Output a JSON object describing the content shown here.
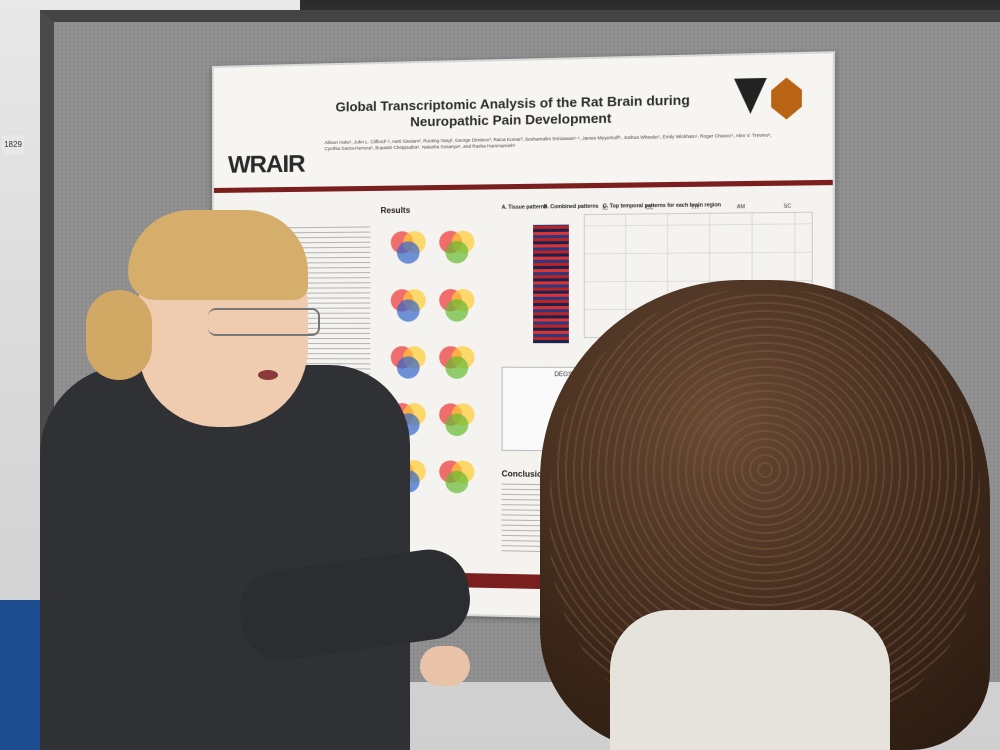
{
  "scene": {
    "booth_number": "1829"
  },
  "poster": {
    "logo": "WRAIR",
    "title": "Global Transcriptomic Analysis of the Rat Brain during Neuropathic Pain Development",
    "authors": "Allison Hoke¹, John L. Clifford¹·², Aarti Gautam², Ruoting Yang², George Dimitrov³, Raina Kumar³, Seshamalini Srinivasan¹·⁴, James Meyerhoff⁵, Joshua Wheeler¹, Emily Wickham¹, Roger Chavez⁵, Alex V. Trevino⁶, Cynthia Garza-Herrera⁶, Bopaiah Cheppudira⁶, Natasha Sosanya⁶, and Rasha Hammamieh¹",
    "sections": {
      "results": "Results",
      "conclusion": "Conclusion",
      "degs_over_time": "DEGS OVER TIME",
      "panel_a": "A. Tissue patterns",
      "panel_b": "B. Combined patterns",
      "panel_c": "C. Top temporal patterns for each brain region"
    },
    "region_labels": [
      "IC",
      "CC",
      "TH",
      "AM",
      "SC"
    ]
  }
}
